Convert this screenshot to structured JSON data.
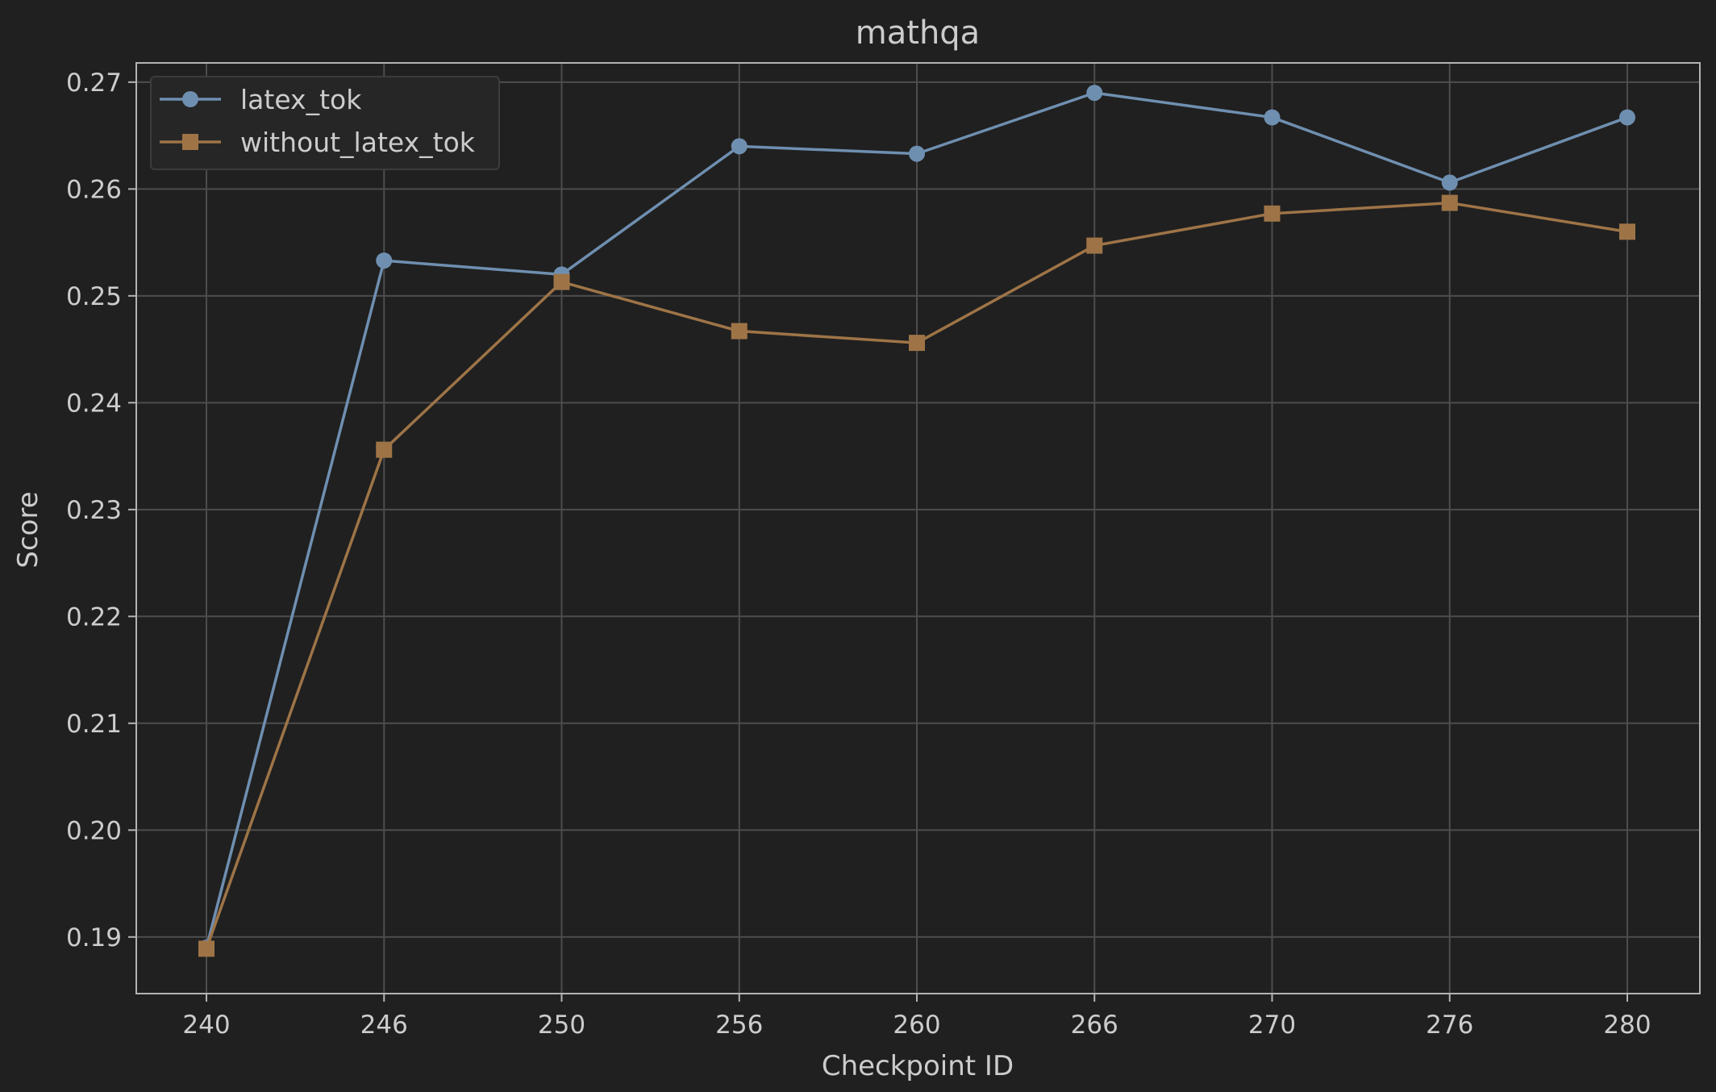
{
  "chart_data": {
    "type": "line",
    "title": "mathqa",
    "xlabel": "Checkpoint ID",
    "ylabel": "Score",
    "x": [
      240,
      246,
      250,
      256,
      260,
      266,
      270,
      276,
      280
    ],
    "x_tick_labels": [
      "240",
      "246",
      "250",
      "256",
      "260",
      "266",
      "270",
      "276",
      "280"
    ],
    "y_ticks": [
      0.19,
      0.2,
      0.21,
      0.22,
      0.23,
      0.24,
      0.25,
      0.26,
      0.27
    ],
    "y_tick_labels": [
      "0.19",
      "0.20",
      "0.21",
      "0.22",
      "0.23",
      "0.24",
      "0.25",
      "0.26",
      "0.27"
    ],
    "ylim": [
      0.1847,
      0.2718
    ],
    "grid": true,
    "legend_position": "top-left",
    "series": [
      {
        "name": "latex_tok",
        "marker": "circle",
        "color": "#6f8fb0",
        "values": [
          0.189,
          0.2533,
          0.252,
          0.264,
          0.2633,
          0.269,
          0.2667,
          0.2606,
          0.2667
        ]
      },
      {
        "name": "without_latex_tok",
        "marker": "square",
        "color": "#9e7447",
        "values": [
          0.1889,
          0.2356,
          0.2513,
          0.2467,
          0.2456,
          0.2547,
          0.2577,
          0.2587,
          0.256
        ]
      }
    ]
  }
}
